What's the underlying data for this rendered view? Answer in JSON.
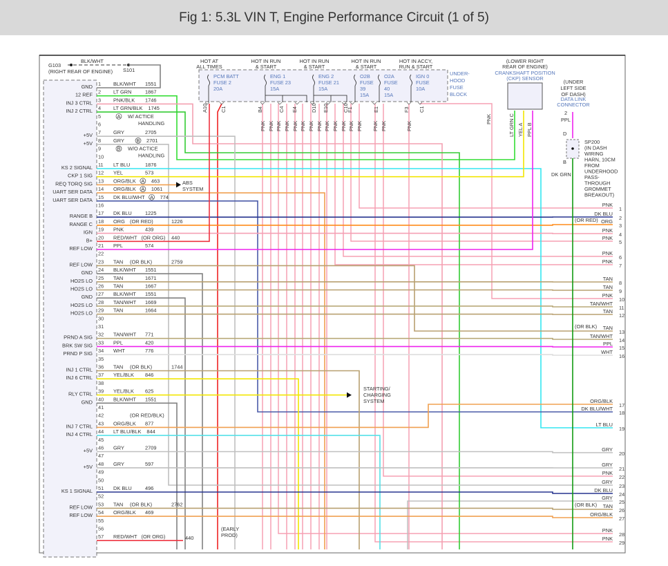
{
  "title": "Fig 1: 5.3L VIN T, Engine Performance Circuit (1 of 5)",
  "ground": {
    "name": "G103",
    "location": "(RIGHT REAR OF ENGINE)",
    "wire": "BLK/WHT",
    "splice": "S101"
  },
  "wire_colors": {
    "BLK/WHT": "#808080",
    "LT GRN": "#33dd33",
    "PNK/BLK": "#f4a0b0",
    "LT GRN/BLK": "#33cc33",
    "GRY": "#bfbfbf",
    "LT BLU": "#33e6f0",
    "YEL": "#f2e600",
    "ORG/BLK": "#f0a050",
    "DK BLU/WHT": "#4a5aa8",
    "DK BLU": "#26348f",
    "ORG": "#ff8c1a",
    "PNK": "#f5a0b4",
    "RED/WHT": "#ee3340",
    "PPL": "#ee22ee",
    "TAN": "#b8a070",
    "TAN/WHT": "#b8a878",
    "WHT": "#dddddd",
    "YEL/BLK": "#f2e600",
    "LT BLU/BLK": "#55e0e8",
    "RED": "#ee2222",
    "DK GRN": "#119911"
  },
  "left_pins": [
    {
      "pin": "1",
      "signal": "GND",
      "wire": "BLK/WHT",
      "circuit": "1551"
    },
    {
      "pin": "2",
      "signal": "12 REF",
      "wire": "LT GRN",
      "circuit": "1867"
    },
    {
      "pin": "3",
      "signal": "INJ 3 CTRL",
      "wire": "PNK/BLK",
      "circuit": "1746"
    },
    {
      "pin": "4",
      "signal": "INJ 2 CTRL",
      "wire": "LT GRN/BLK",
      "circuit": "1745"
    },
    {
      "pin": "5"
    },
    {
      "pin": "6"
    },
    {
      "pin": "7",
      "signal": "+5V",
      "wire": "GRY",
      "circuit": "2705"
    },
    {
      "pin": "8",
      "signal": "+5V",
      "wire": "GRY",
      "marker": "B",
      "circuit": "2701"
    },
    {
      "pin": "9"
    },
    {
      "pin": "10"
    },
    {
      "pin": "11",
      "signal": "KS 2 SIGNAL",
      "wire": "LT BLU",
      "circuit": "1876"
    },
    {
      "pin": "12",
      "signal": "CKP 1 SIG",
      "wire": "YEL",
      "circuit": "573"
    },
    {
      "pin": "13",
      "signal": "REQ TORQ SIG",
      "wire": "ORG/BLK",
      "marker": "A",
      "circuit": "463"
    },
    {
      "pin": "14",
      "signal": "UART SER DATA",
      "wire": "ORG/BLK",
      "marker": "A",
      "circuit": "1061"
    },
    {
      "pin": "15",
      "signal": "UART SER DATA",
      "wire": "DK BLU/WHT",
      "marker": "A",
      "circuit": "774"
    },
    {
      "pin": "16"
    },
    {
      "pin": "17",
      "signal": "RANGE B",
      "wire": "DK BLU",
      "circuit": "1225"
    },
    {
      "pin": "18",
      "signal": "RANGE C",
      "wire": "ORG",
      "note": "(OR RED)",
      "circuit": "1226"
    },
    {
      "pin": "19",
      "signal": "IGN",
      "wire": "PNK",
      "circuit": "439"
    },
    {
      "pin": "20",
      "signal": "B+",
      "wire": "RED/WHT",
      "note": "(OR ORG)",
      "circuit": "440"
    },
    {
      "pin": "21",
      "signal": "REF LOW",
      "wire": "PPL",
      "circuit": "574"
    },
    {
      "pin": "22"
    },
    {
      "pin": "23",
      "signal": "REF LOW",
      "wire": "TAN",
      "note": "(OR BLK)",
      "circuit": "2759"
    },
    {
      "pin": "24",
      "signal": "GND",
      "wire": "BLK/WHT",
      "circuit": "1551"
    },
    {
      "pin": "25",
      "signal": "HO2S LO",
      "wire": "TAN",
      "circuit": "1671"
    },
    {
      "pin": "26",
      "signal": "HO2S LO",
      "wire": "TAN",
      "circuit": "1667"
    },
    {
      "pin": "27",
      "signal": "GND",
      "wire": "BLK/WHT",
      "circuit": "1551"
    },
    {
      "pin": "28",
      "signal": "HO2S LO",
      "wire": "TAN/WHT",
      "circuit": "1669"
    },
    {
      "pin": "29",
      "signal": "HO2S LO",
      "wire": "TAN",
      "circuit": "1664"
    },
    {
      "pin": "30"
    },
    {
      "pin": "31"
    },
    {
      "pin": "32",
      "signal": "PRND A SIG",
      "wire": "TAN/WHT",
      "circuit": "771"
    },
    {
      "pin": "33",
      "signal": "BRK SW SIG",
      "wire": "PPL",
      "circuit": "420"
    },
    {
      "pin": "34",
      "signal": "PRND P SIG",
      "wire": "WHT",
      "circuit": "776"
    },
    {
      "pin": "35"
    },
    {
      "pin": "36",
      "signal": "INJ 1 CTRL",
      "wire": "TAN",
      "note": "(OR BLK)",
      "circuit": "1744"
    },
    {
      "pin": "37",
      "signal": "INJ 6 CTRL",
      "wire": "YEL/BLK",
      "circuit": "846"
    },
    {
      "pin": "38"
    },
    {
      "pin": "39",
      "signal": "RLY CTRL",
      "wire": "YEL/BLK",
      "circuit": "625"
    },
    {
      "pin": "40",
      "signal": "GND",
      "wire": "BLK/WHT",
      "circuit": "1551"
    },
    {
      "pin": "41"
    },
    {
      "pin": "42",
      "note": "(OR RED/BLK)"
    },
    {
      "pin": "43",
      "signal": "INJ 7 CTRL",
      "wire": "ORG/BLK",
      "circuit": "877"
    },
    {
      "pin": "44",
      "signal": "INJ 4 CTRL",
      "wire": "LT BLU/BLK",
      "circuit": "844"
    },
    {
      "pin": "45"
    },
    {
      "pin": "46",
      "signal": "+5V",
      "wire": "GRY",
      "circuit": "2709"
    },
    {
      "pin": "47"
    },
    {
      "pin": "48",
      "signal": "+5V",
      "wire": "GRY",
      "circuit": "597"
    },
    {
      "pin": "49"
    },
    {
      "pin": "50"
    },
    {
      "pin": "51",
      "signal": "KS 1 SIGNAL",
      "wire": "DK BLU",
      "circuit": "496"
    },
    {
      "pin": "52"
    },
    {
      "pin": "53",
      "signal": "REF LOW",
      "wire": "TAN",
      "note": "(OR BLK)",
      "circuit": "2762"
    },
    {
      "pin": "54",
      "signal": "REF LOW",
      "wire": "ORG/BLK",
      "circuit": "469"
    },
    {
      "pin": "55"
    },
    {
      "pin": "56"
    },
    {
      "pin": "57",
      "wire": "RED/WHT",
      "note": "(OR ORG)"
    }
  ],
  "handling_notes": [
    {
      "marker": "A",
      "lines": [
        "W/ ACTICE",
        "HANDLING"
      ]
    },
    {
      "marker": "B",
      "lines": [
        "W/O ACTICE",
        "HANDLING"
      ]
    }
  ],
  "destinations": {
    "abs": [
      "ABS",
      "SYSTEM"
    ],
    "starting": [
      "STARTING/",
      "CHARGING",
      "SYSTEM"
    ]
  },
  "misc_labels": {
    "early_prod": [
      "(EARLY",
      "PROD)"
    ],
    "circuit_440": "440"
  },
  "fuse_block": {
    "label": [
      "UNDER-",
      "HOOD",
      "FUSE",
      "BLOCK"
    ],
    "hot_labels": [
      [
        "HOT AT",
        "ALL TIMES"
      ],
      [
        "HOT IN RUN",
        "& START"
      ],
      [
        "HOT IN RUN",
        "& START"
      ],
      [
        "HOT IN RUN",
        "& START"
      ],
      [
        "HOT IN ACCY,",
        "RUN & START"
      ]
    ],
    "fuses": [
      {
        "lines": [
          "PCM BATT",
          "FUSE 2",
          "20A"
        ]
      },
      {
        "lines": [
          "ENG 1",
          "FUSE 23",
          "15A"
        ]
      },
      {
        "lines": [
          "ENG 2",
          "FUSE 21",
          "15A"
        ]
      },
      {
        "lines": [
          "O2B",
          "FUSE",
          "39",
          "15A"
        ]
      },
      {
        "lines": [
          "O2A",
          "FUSE",
          "40",
          "15A"
        ]
      },
      {
        "lines": [
          "IGN 0",
          "FUSE",
          "10A"
        ]
      }
    ],
    "terminals": [
      "A10",
      "C1",
      "B4",
      "C4",
      "E4",
      "D10",
      "E10",
      "C10",
      "F1",
      "E1",
      "F3",
      "C1"
    ],
    "drop_wire_label": "PNK"
  },
  "ckp_sensor": {
    "location": [
      "(LOWER RIGHT",
      "REAR OF ENGINE)"
    ],
    "name": [
      "CRANKSHAFT POSITION",
      "(CKP) SENSOR"
    ],
    "pins": [
      {
        "label": "LT GRN  C",
        "wire": "LT GRN"
      },
      {
        "label": "YEL  A",
        "wire": "YEL"
      },
      {
        "label": "PPL  B",
        "wire": "PPL"
      }
    ]
  },
  "dlc": {
    "location": [
      "(UNDER",
      "LEFT SIDE",
      "OF DASH)"
    ],
    "name": [
      "DATA LINK",
      "CONNECTOR"
    ],
    "pin": "2",
    "wire": "PPL"
  },
  "splice": {
    "top_pin": "D",
    "bottom_pin": "B",
    "description": [
      "SP200",
      "(IN DASH",
      "WIRING",
      "HARN, 10CM",
      "FROM",
      "UNDERHOOD",
      "PASS-",
      "THROUGH",
      "GROMMET",
      "BREAKOUT)"
    ],
    "wire": "DK GRN"
  },
  "right_pins": [
    {
      "pin": "1",
      "wire": "PNK"
    },
    {
      "pin": "2",
      "wire": "DK BLU"
    },
    {
      "pin": "3",
      "wire": "ORG",
      "note": "(OR RED)"
    },
    {
      "pin": "4",
      "wire": "PNK"
    },
    {
      "pin": "5",
      "wire": "PNK"
    },
    {
      "pin": "6",
      "wire": "PNK"
    },
    {
      "pin": "7",
      "wire": "PNK"
    },
    {
      "pin": "8",
      "wire": "TAN"
    },
    {
      "pin": "9",
      "wire": "TAN"
    },
    {
      "pin": "10",
      "wire": "PNK"
    },
    {
      "pin": "11",
      "wire": "TAN/WHT"
    },
    {
      "pin": "12",
      "wire": "TAN"
    },
    {
      "pin": "13",
      "wire": "TAN",
      "note": "(OR BLK)"
    },
    {
      "pin": "14",
      "wire": "TAN/WHT"
    },
    {
      "pin": "15",
      "wire": "PPL"
    },
    {
      "pin": "16",
      "wire": "WHT"
    },
    {
      "pin": "17",
      "wire": "ORG/BLK"
    },
    {
      "pin": "18",
      "wire": "DK BLU/WHT"
    },
    {
      "pin": "19",
      "wire": "LT BLU"
    },
    {
      "pin": "20",
      "wire": "GRY"
    },
    {
      "pin": "21",
      "wire": "GRY"
    },
    {
      "pin": "22",
      "wire": "PNK"
    },
    {
      "pin": "23",
      "wire": "GRY"
    },
    {
      "pin": "24",
      "wire": "DK BLU"
    },
    {
      "pin": "25",
      "wire": "GRY"
    },
    {
      "pin": "26",
      "wire": "TAN",
      "note": "(OR BLK)"
    },
    {
      "pin": "27",
      "wire": "ORG/BLK"
    },
    {
      "pin": "28",
      "wire": "PNK"
    },
    {
      "pin": "29",
      "wire": "PNK"
    }
  ]
}
